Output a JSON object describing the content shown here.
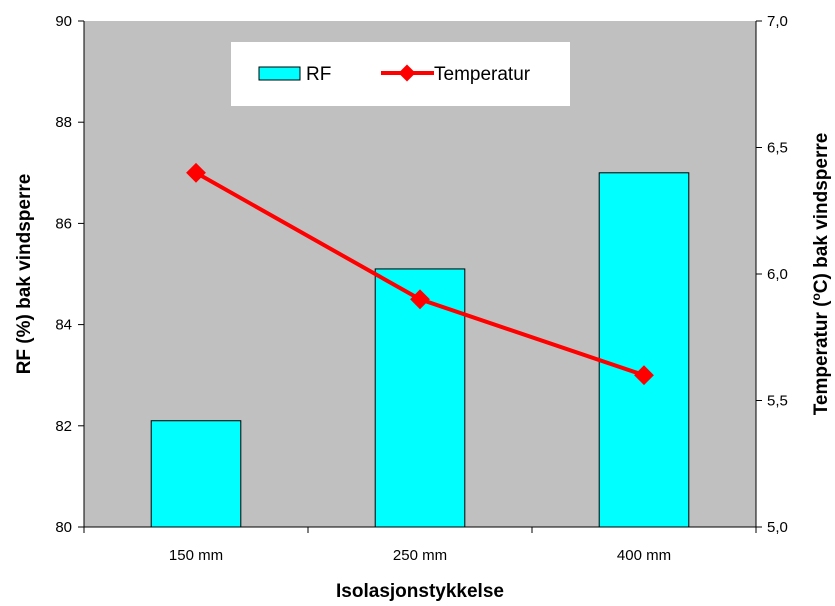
{
  "chart_data": {
    "type": "bar",
    "categories": [
      "150 mm",
      "250 mm",
      "400 mm"
    ],
    "xlabel": "Isolasjonstykkelse",
    "ylabel": "RF (%) bak vindsperre",
    "y2label_pre": "Temperatur (",
    "y2label_sup": "o",
    "y2label_post": "C) bak vindsperre",
    "ylim": [
      80,
      90
    ],
    "y2lim": [
      5.0,
      7.0
    ],
    "yticks": [
      "80",
      "82",
      "84",
      "86",
      "88",
      "90"
    ],
    "y2ticks": [
      "5,0",
      "5,5",
      "6,0",
      "6,5",
      "7,0"
    ],
    "grid": false,
    "legend_position": "top-center",
    "plot_background": "#c0c0c0",
    "series": [
      {
        "name": "RF",
        "type": "bar",
        "axis": "left",
        "color": "#00ffff",
        "values": [
          82.1,
          85.1,
          87.0
        ]
      },
      {
        "name": "Temperatur",
        "type": "line",
        "axis": "right",
        "color": "#ff0000",
        "values": [
          6.4,
          5.9,
          5.6
        ]
      }
    ]
  }
}
